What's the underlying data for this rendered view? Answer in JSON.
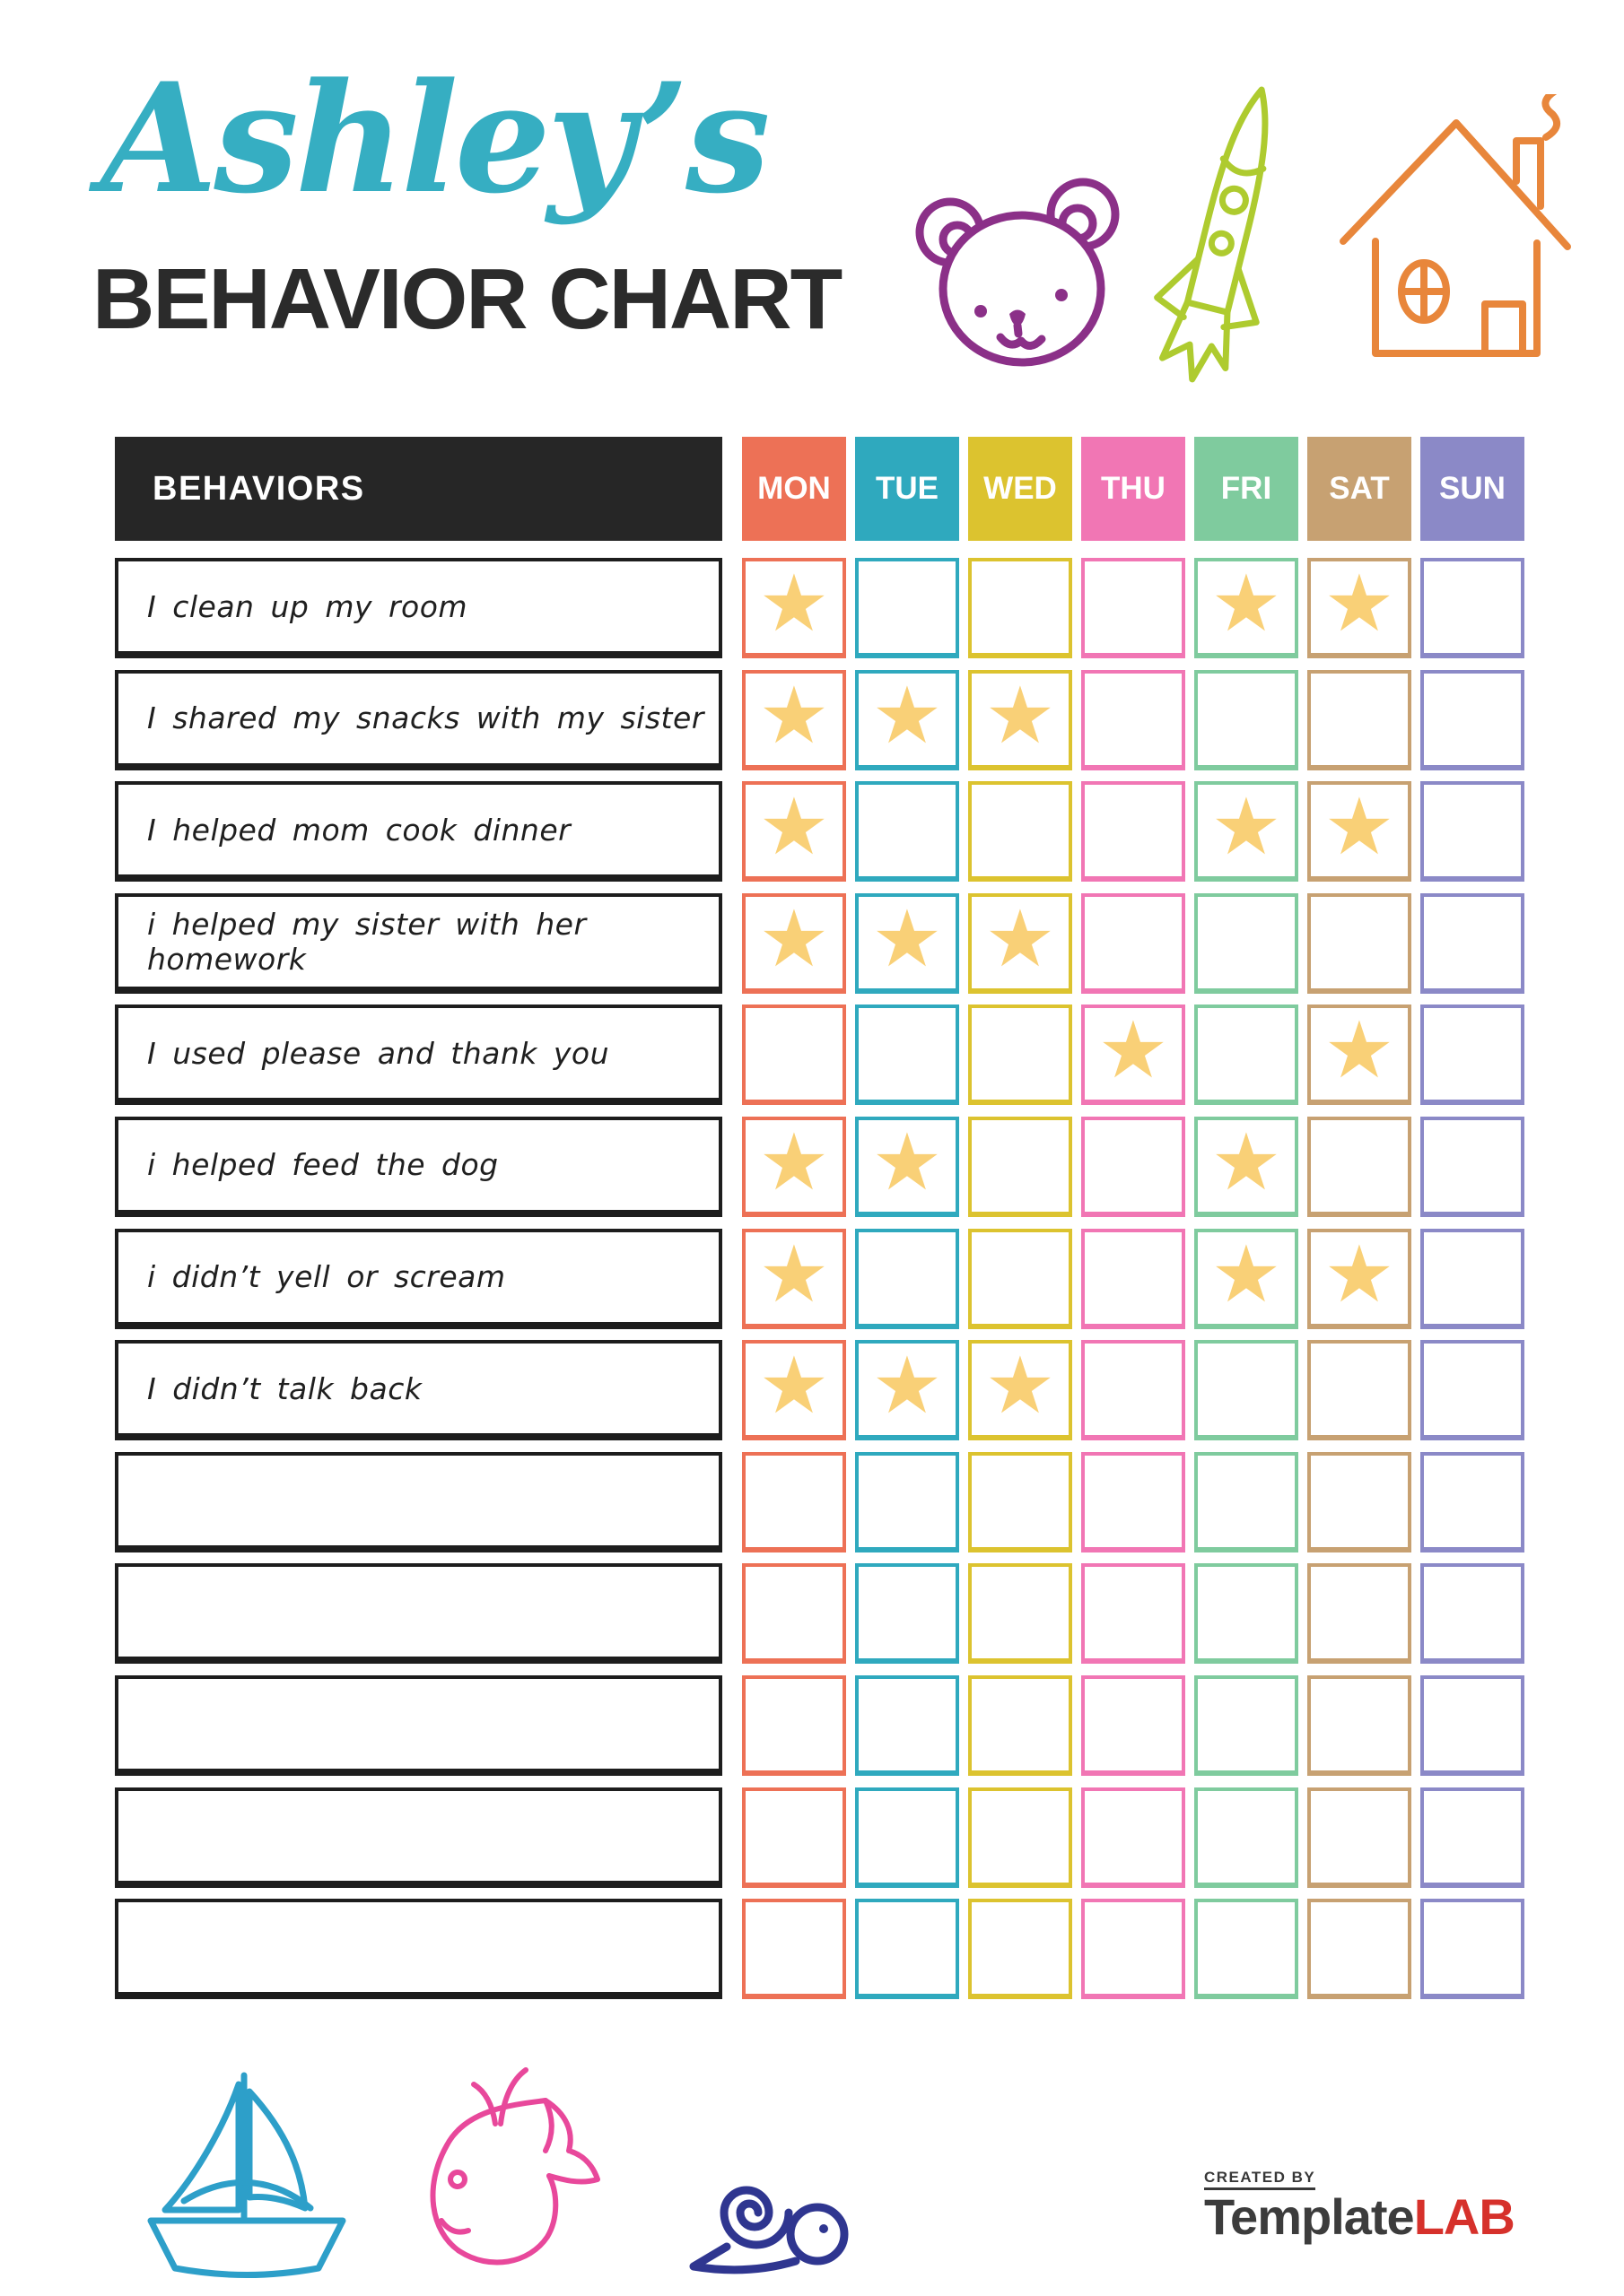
{
  "header": {
    "name": "Ashley’s",
    "title": "BEHAVIOR CHART"
  },
  "colors": {
    "name_title": "#36AEC2",
    "main_title": "#2B2B2B",
    "header_bar": "#262626",
    "star": "#F9D077",
    "bear": "#8B3088",
    "rocket": "#AECB2F",
    "house": "#E8863B",
    "sailboat": "#2D9FC9",
    "whale": "#E8489B",
    "snail": "#2F3690",
    "brand_text": "#3C3C3C",
    "brand_accent": "#D6312B"
  },
  "table": {
    "behaviors_header": "BEHAVIORS",
    "star_glyph": "★",
    "days": [
      {
        "label": "MON",
        "color": "#ED7156"
      },
      {
        "label": "TUE",
        "color": "#2FA9BE"
      },
      {
        "label": "WED",
        "color": "#DCC32F"
      },
      {
        "label": "THU",
        "color": "#F176B4"
      },
      {
        "label": "FRI",
        "color": "#7FCB9E"
      },
      {
        "label": "SAT",
        "color": "#C7A172"
      },
      {
        "label": "SUN",
        "color": "#8B89C7"
      }
    ],
    "rows": [
      {
        "behavior": "I clean up my room",
        "stars": [
          "MON",
          "FRI",
          "SAT"
        ]
      },
      {
        "behavior": "I shared my snacks with my sister",
        "stars": [
          "MON",
          "TUE",
          "WED"
        ]
      },
      {
        "behavior": "I helped mom cook dinner",
        "stars": [
          "MON",
          "FRI",
          "SAT"
        ]
      },
      {
        "behavior": "i helped my sister with her homework",
        "stars": [
          "MON",
          "TUE",
          "WED"
        ]
      },
      {
        "behavior": "I used please and thank you",
        "stars": [
          "THU",
          "SAT"
        ]
      },
      {
        "behavior": "i helped feed the dog",
        "stars": [
          "MON",
          "TUE",
          "FRI"
        ]
      },
      {
        "behavior": "i didn’t yell or scream",
        "stars": [
          "MON",
          "FRI",
          "SAT"
        ]
      },
      {
        "behavior": "I didn’t talk back",
        "stars": [
          "MON",
          "TUE",
          "WED"
        ]
      },
      {
        "behavior": "",
        "stars": []
      },
      {
        "behavior": "",
        "stars": []
      },
      {
        "behavior": "",
        "stars": []
      },
      {
        "behavior": "",
        "stars": []
      },
      {
        "behavior": "",
        "stars": []
      }
    ]
  },
  "footer": {
    "created_by": "CREATED BY",
    "brand_primary": "Template",
    "brand_accent": "LAB"
  }
}
